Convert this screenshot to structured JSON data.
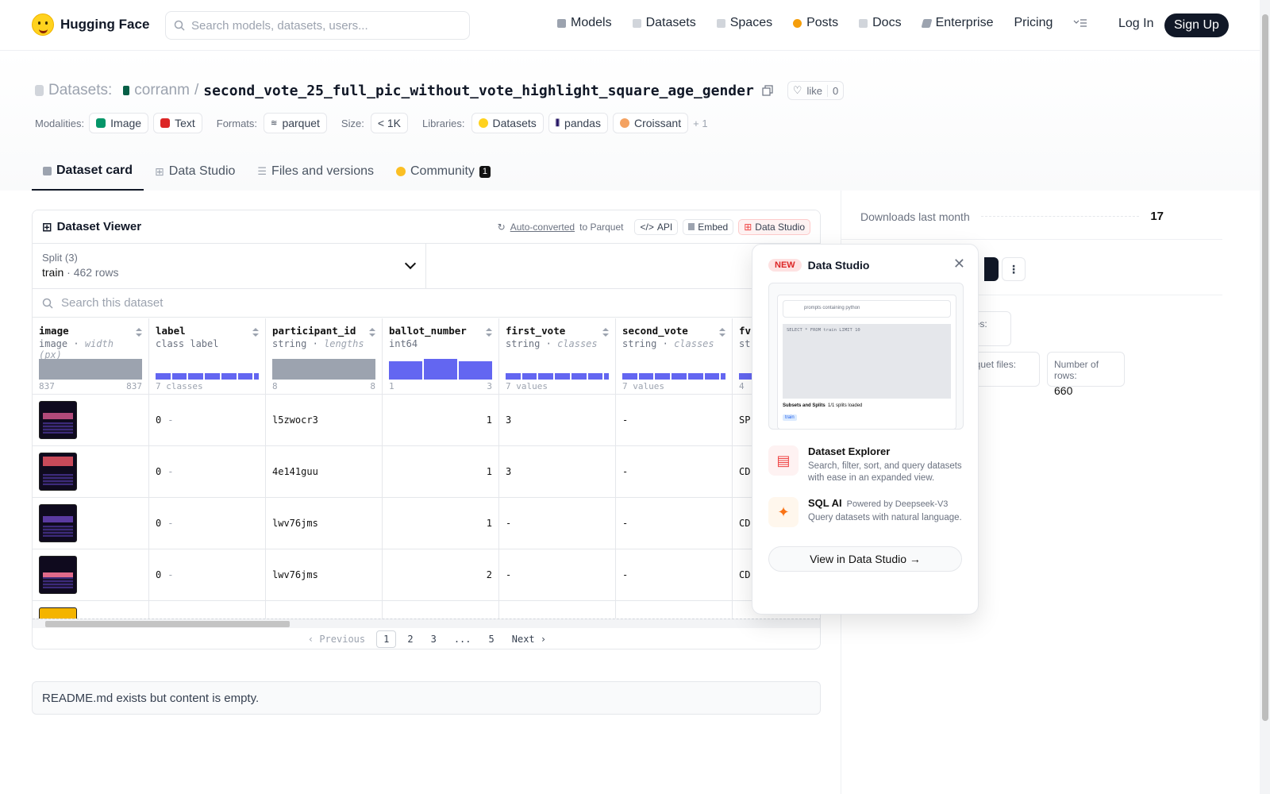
{
  "nav": {
    "brand": "Hugging Face",
    "search_placeholder": "Search models, datasets, users...",
    "links": [
      {
        "label": "Models",
        "color": "#6b7280"
      },
      {
        "label": "Datasets",
        "color": "#9ca3af"
      },
      {
        "label": "Spaces",
        "color": "#9ca3af"
      },
      {
        "label": "Posts",
        "color": "#f59e0b"
      },
      {
        "label": "Docs",
        "color": "#9ca3af"
      },
      {
        "label": "Enterprise",
        "color": "#6b7280"
      },
      {
        "label": "Pricing",
        "color": ""
      }
    ],
    "login": "Log In",
    "signup": "Sign Up"
  },
  "header": {
    "section": "Datasets:",
    "owner": "corranm",
    "separator": "/",
    "name": "second_vote_25_full_pic_without_vote_highlight_square_age_gender",
    "like_label": "like",
    "like_count": "0",
    "modalities_label": "Modalities:",
    "modalities": [
      {
        "label": "Image",
        "color": "#059669"
      },
      {
        "label": "Text",
        "color": "#dc2626"
      }
    ],
    "formats_label": "Formats:",
    "format": "parquet",
    "size_label": "Size:",
    "size": "< 1K",
    "libraries_label": "Libraries:",
    "libraries": [
      "Datasets",
      "pandas",
      "Croissant"
    ],
    "more": "+ 1"
  },
  "tabs": [
    {
      "label": "Dataset card"
    },
    {
      "label": "Data Studio"
    },
    {
      "label": "Files and versions"
    },
    {
      "label": "Community",
      "badge": "1"
    }
  ],
  "viewer": {
    "title": "Dataset Viewer",
    "autoconverted": "Auto-converted",
    "to_parquet": "to Parquet",
    "api": "API",
    "embed": "Embed",
    "data_studio": "Data Studio",
    "split_label": "Split (3)",
    "split_name": "train",
    "split_dot": "·",
    "split_rows": "462 rows",
    "search_placeholder": "Search this dataset",
    "columns": [
      {
        "name": "image",
        "type": "image",
        "sub": "width (px)",
        "min": "837",
        "max": "837"
      },
      {
        "name": "label",
        "type": "class label",
        "sub": "",
        "min": "7 classes",
        "max": ""
      },
      {
        "name": "participant_id",
        "type": "string",
        "sub": "lengths",
        "min": "8",
        "max": "8"
      },
      {
        "name": "ballot_number",
        "type": "int64",
        "sub": "",
        "min": "1",
        "max": "3"
      },
      {
        "name": "first_vote",
        "type": "string",
        "sub": "classes",
        "min": "7 values",
        "max": ""
      },
      {
        "name": "second_vote",
        "type": "string",
        "sub": "classes",
        "min": "7 values",
        "max": ""
      },
      {
        "name": "fv",
        "type": "st",
        "sub": "",
        "min": "4",
        "max": ""
      }
    ],
    "type_sep": "·",
    "rows": [
      {
        "label": "0",
        "dash": "-",
        "participant_id": "l5zwocr3",
        "ballot": "1",
        "first_vote": "3",
        "second_vote": "-",
        "fv": "SP"
      },
      {
        "label": "0",
        "dash": "-",
        "participant_id": "4e141guu",
        "ballot": "1",
        "first_vote": "3",
        "second_vote": "-",
        "fv": "CD"
      },
      {
        "label": "0",
        "dash": "-",
        "participant_id": "lwv76jms",
        "ballot": "1",
        "first_vote": "-",
        "second_vote": "-",
        "fv": "CD"
      },
      {
        "label": "0",
        "dash": "-",
        "participant_id": "lwv76jms",
        "ballot": "2",
        "first_vote": "-",
        "second_vote": "-",
        "fv": "CD"
      }
    ],
    "pager": {
      "previous": "Previous",
      "pages": [
        "1",
        "2",
        "3",
        "...",
        "5"
      ],
      "next": "Next"
    }
  },
  "readme": "README.md exists but content is empty.",
  "sidebar": {
    "downloads_label": "Downloads last month",
    "downloads_value": "17",
    "files_label": "files:",
    "parquet_label": "arquet files:",
    "rows_label": "Number of rows:",
    "rows_value": "660"
  },
  "popover": {
    "badge": "NEW",
    "title": "Data Studio",
    "preview_search": "prompts containing python",
    "preview_sql": "SELECT * FROM train LIMIT 10",
    "preview_subsets": "Subsets and Splits",
    "preview_loaded": "1/1 splits loaded",
    "preview_train": "train",
    "features": [
      {
        "title": "Dataset Explorer",
        "powered": "",
        "desc": "Search, filter, sort, and query datasets with ease in an expanded view."
      },
      {
        "title": "SQL AI",
        "powered": "Powered by Deepseek-V3",
        "desc": "Query datasets with natural language."
      }
    ],
    "cta": "View in Data Studio →"
  }
}
